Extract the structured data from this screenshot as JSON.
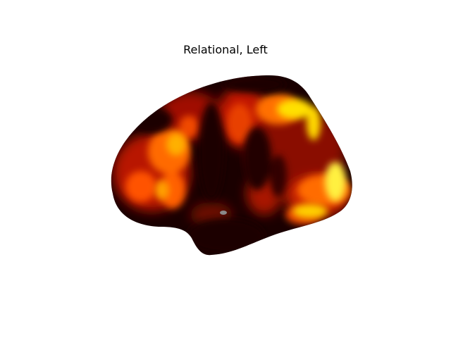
{
  "figure": {
    "title": "Relational, Left"
  },
  "surface": {
    "hemisphere": "left",
    "view": "lateral",
    "colormap": "hot",
    "colors": {
      "low": "#1a0000",
      "mid": "#b81400",
      "high": "#ff6a00",
      "peak": "#ffe000",
      "background": "#ffffff"
    }
  }
}
